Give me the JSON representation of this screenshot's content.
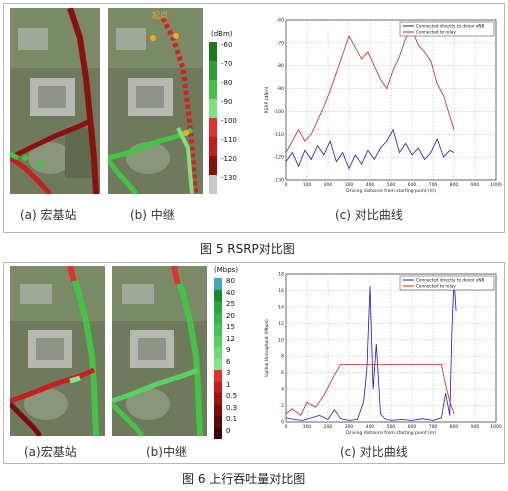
{
  "figure5": {
    "caption": "图 5 RSRP对比图",
    "labels": {
      "a": "(a) 宏基站",
      "b": "(b) 中继",
      "c": "(c) 对比曲线"
    },
    "legend": {
      "unit": "(dBm)",
      "ticks": [
        "-60",
        "-70",
        "-80",
        "-90",
        "-100",
        "-110",
        "-120",
        "-130"
      ],
      "colors": [
        "#1a7a1a",
        "#2e9e2e",
        "#44c244",
        "#7fe07f",
        "#e23030",
        "#c21c1c",
        "#8a1010",
        "#c8c8c8"
      ]
    },
    "map_b_annotation": "起点"
  },
  "figure6": {
    "caption": "图 6 上行吞吐量对比图",
    "labels": {
      "a": "(a)宏基站",
      "b": "(b)中继",
      "c": "(c) 对比曲线"
    },
    "legend": {
      "unit": "(Mbps)",
      "ticks": [
        "80",
        "40",
        "25",
        "20",
        "15",
        "12",
        "9",
        "6",
        "3",
        "1",
        "0.5",
        "0.3",
        "0.1",
        "0"
      ],
      "colors": [
        "#46a6b8",
        "#1c8a2c",
        "#2aa63a",
        "#35b845",
        "#44c455",
        "#58d062",
        "#6fda72",
        "#88e488",
        "#e23030",
        "#c41c1c",
        "#a01212",
        "#7a0c0c",
        "#5a0808",
        "#3a0404"
      ]
    }
  },
  "chart_data": [
    {
      "type": "line",
      "legend": [
        "Connected directly to donor eNB",
        "Connected to relay"
      ],
      "xlabel": "Driving distance from starting point (m)",
      "ylabel": "RSRP (dBm)",
      "xlim": [
        0,
        1000
      ],
      "ylim": [
        -130,
        -60
      ],
      "xticks": [
        0,
        100,
        200,
        300,
        400,
        500,
        600,
        700,
        800,
        900,
        1000
      ],
      "yticks": [
        -60,
        -70,
        -80,
        -90,
        -100,
        -110,
        -120,
        -130
      ],
      "series": [
        {
          "name": "Connected directly to donor eNB",
          "color": "#1a1acc",
          "x": [
            0,
            30,
            60,
            90,
            120,
            150,
            180,
            210,
            240,
            270,
            300,
            330,
            360,
            390,
            420,
            450,
            480,
            510,
            540,
            570,
            600,
            630,
            660,
            690,
            720,
            750,
            780,
            800
          ],
          "y": [
            -122,
            -118,
            -124,
            -117,
            -121,
            -115,
            -119,
            -113,
            -122,
            -118,
            -125,
            -119,
            -123,
            -117,
            -121,
            -116,
            -113,
            -108,
            -118,
            -114,
            -119,
            -116,
            -121,
            -118,
            -112,
            -120,
            -117,
            -118
          ]
        },
        {
          "name": "Connected to relay",
          "color": "#d42020",
          "x": [
            0,
            30,
            60,
            90,
            120,
            150,
            180,
            210,
            240,
            270,
            300,
            330,
            360,
            390,
            420,
            450,
            480,
            510,
            540,
            570,
            600,
            630,
            660,
            690,
            720,
            750,
            780,
            800
          ],
          "y": [
            -118,
            -113,
            -108,
            -113,
            -110,
            -104,
            -98,
            -91,
            -83,
            -75,
            -67,
            -72,
            -77,
            -74,
            -80,
            -86,
            -90,
            -82,
            -76,
            -68,
            -64,
            -71,
            -74,
            -78,
            -88,
            -93,
            -102,
            -108
          ]
        }
      ]
    },
    {
      "type": "line",
      "legend": [
        "Connected directly to donor eNB",
        "Connected to relay"
      ],
      "xlabel": "Driving distance from starting point (m)",
      "ylabel": "Uplink throughput (Mbps)",
      "xlim": [
        0,
        1000
      ],
      "ylim": [
        0,
        18
      ],
      "xticks": [
        0,
        100,
        200,
        300,
        400,
        500,
        600,
        700,
        800,
        900,
        1000
      ],
      "yticks": [
        0,
        2,
        4,
        6,
        8,
        10,
        12,
        14,
        16,
        18
      ],
      "series": [
        {
          "name": "Connected directly to donor eNB",
          "color": "#1a1acc",
          "x": [
            0,
            40,
            80,
            120,
            160,
            200,
            230,
            260,
            300,
            340,
            370,
            385,
            400,
            415,
            430,
            450,
            470,
            500,
            550,
            600,
            650,
            700,
            740,
            760,
            780,
            790,
            800,
            810
          ],
          "y": [
            0.5,
            0.3,
            0.2,
            0.5,
            0.8,
            0.3,
            1.5,
            0.4,
            0.2,
            0.3,
            2.5,
            6.5,
            16.5,
            4.0,
            9.5,
            1.0,
            0.4,
            0.2,
            0.3,
            0.2,
            0.4,
            0.2,
            0.5,
            3.5,
            0.8,
            11.0,
            17.5,
            13.5
          ]
        },
        {
          "name": "Connected to relay",
          "color": "#d42020",
          "x": [
            0,
            30,
            70,
            100,
            140,
            180,
            220,
            260,
            300,
            350,
            400,
            450,
            500,
            550,
            600,
            650,
            700,
            740,
            760,
            780,
            800
          ],
          "y": [
            1.0,
            1.6,
            0.8,
            2.4,
            1.8,
            3.2,
            5.2,
            7.0,
            7.0,
            7.0,
            7.0,
            7.0,
            7.0,
            7.0,
            7.0,
            7.0,
            7.0,
            7.0,
            4.5,
            2.5,
            1.0
          ]
        }
      ]
    }
  ]
}
